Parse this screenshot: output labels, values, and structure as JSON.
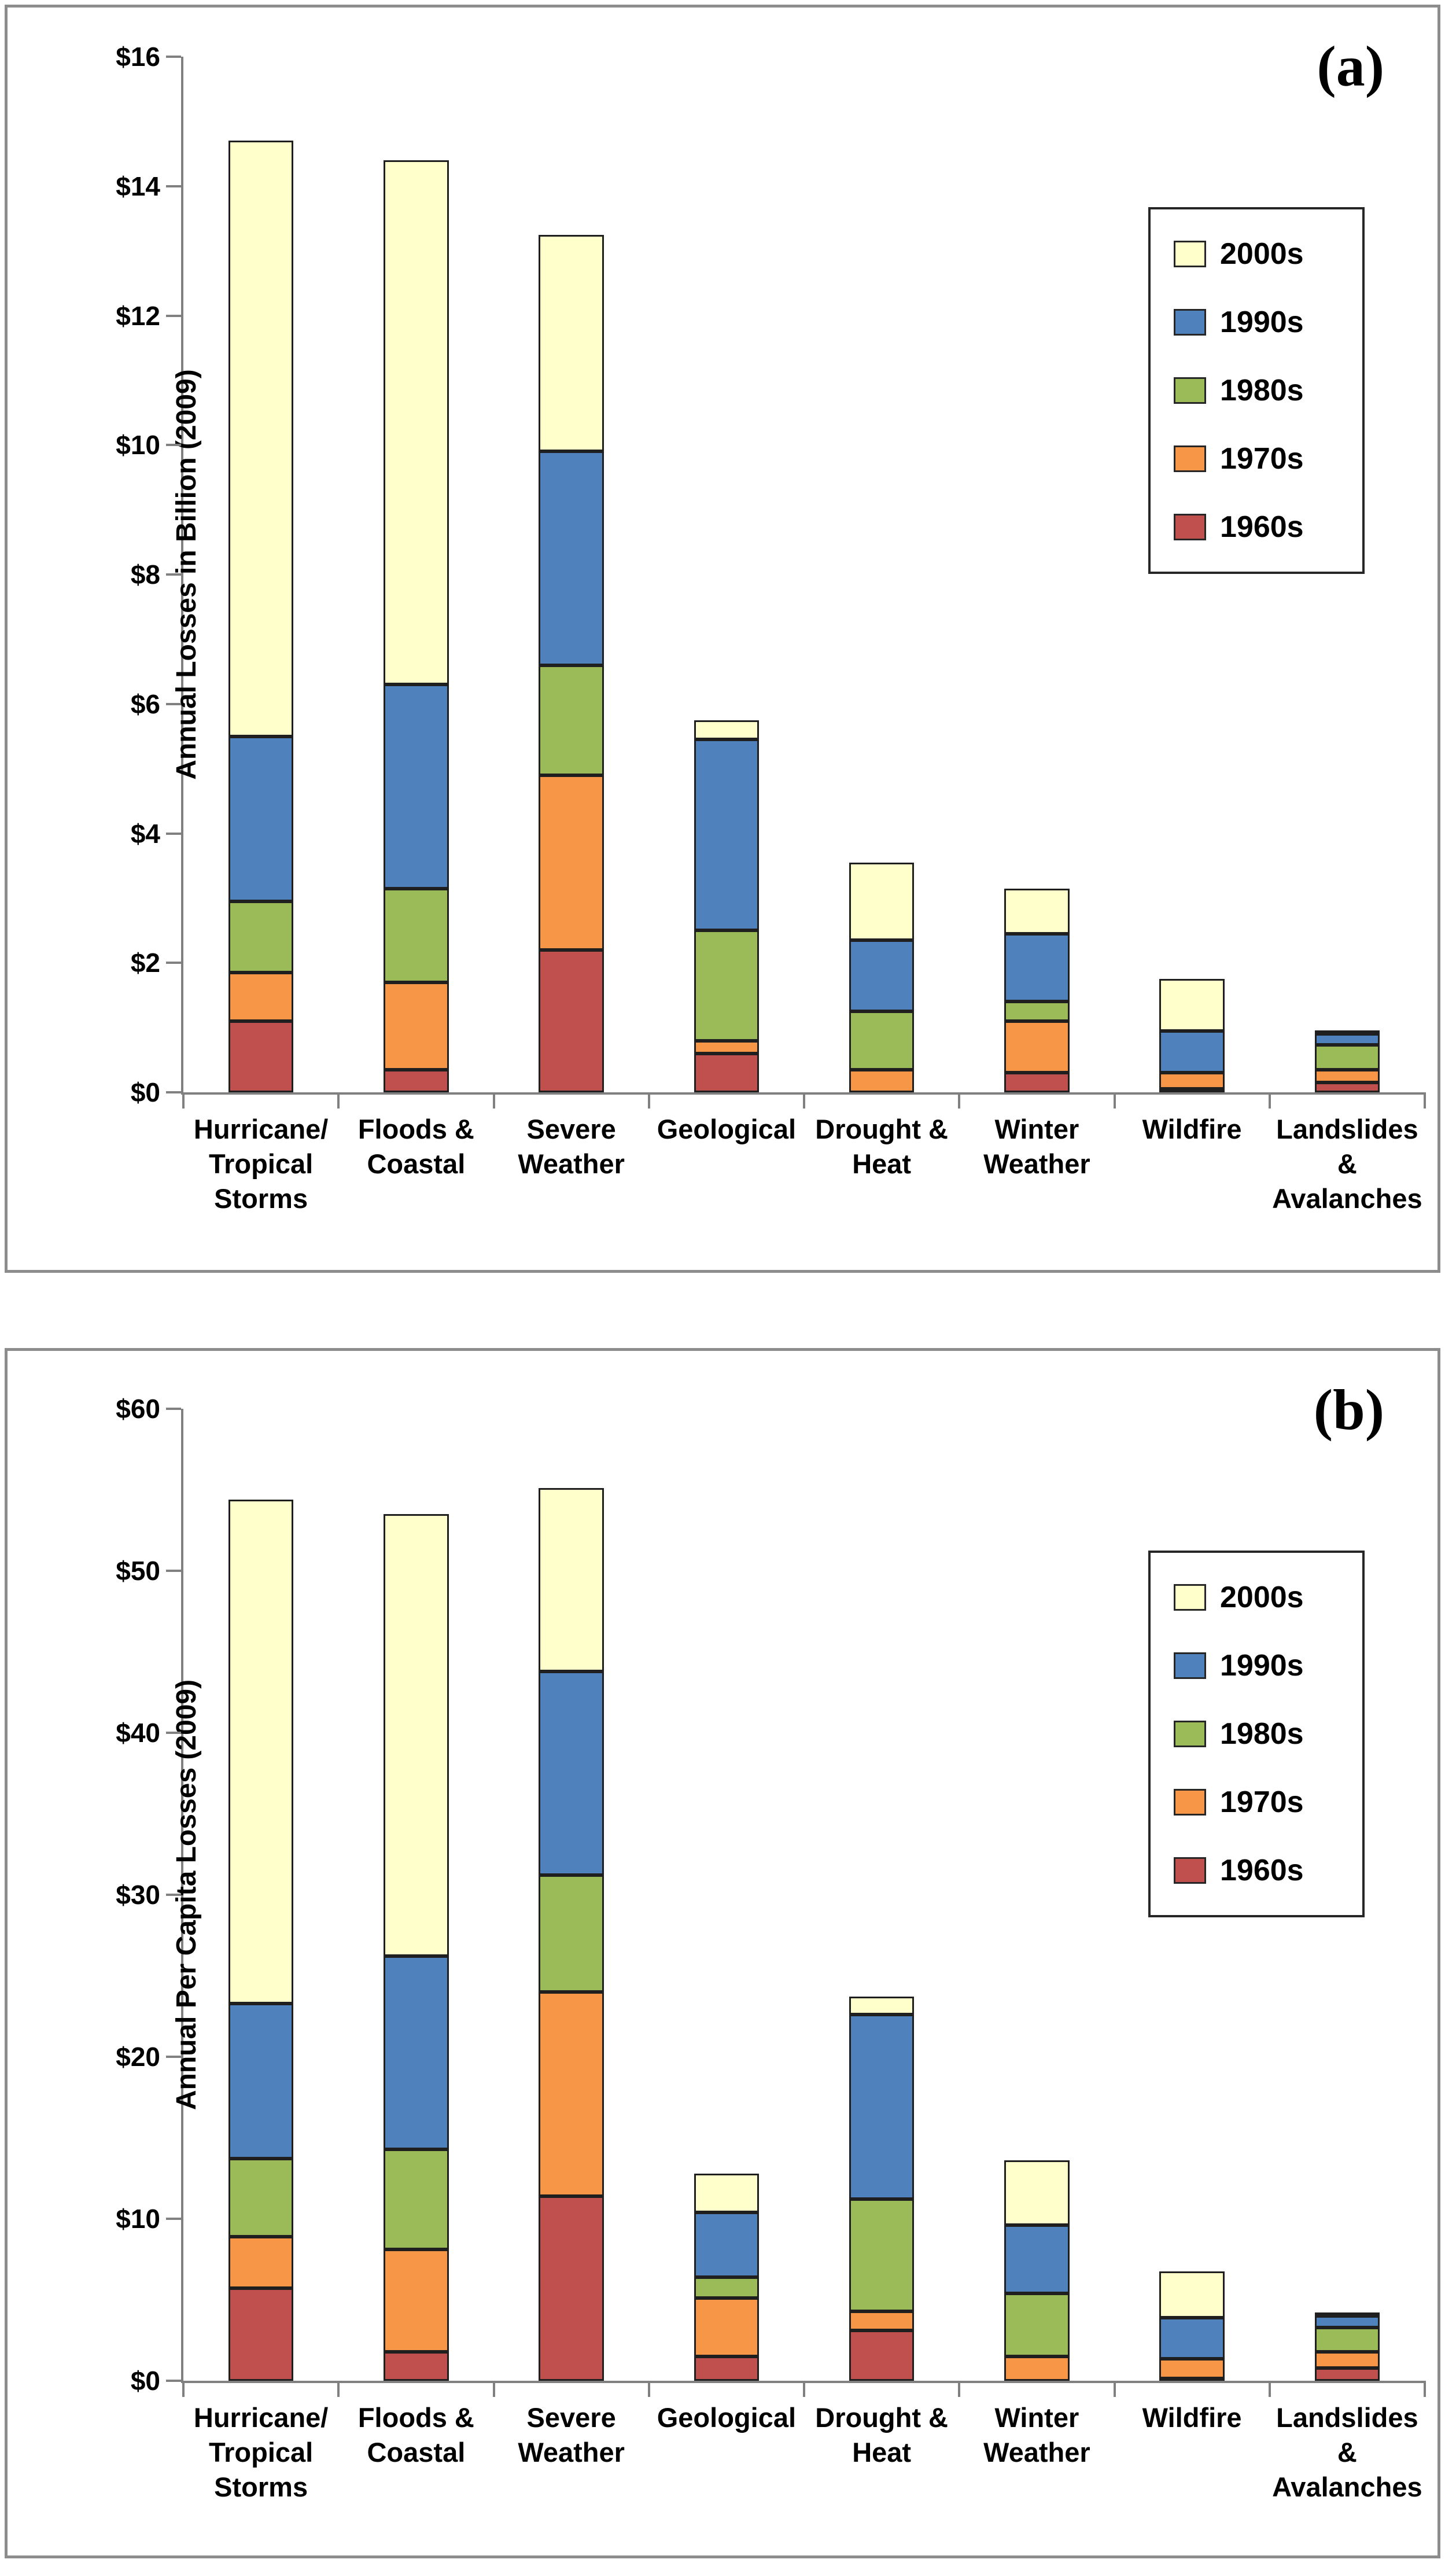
{
  "ui": {
    "background_color": "#FFFFFF",
    "panel_border_color": "#8C8C8C",
    "axis_color": "#808080",
    "segment_border_color": "#1F1F1F",
    "text_color": "#000000"
  },
  "chart_data": [
    {
      "id": "a",
      "type": "bar",
      "stacked": true,
      "panel_label": "(a)",
      "ylabel": "Annual Losses in Billion (2009)",
      "xlabel": "",
      "grid": false,
      "legend_position": "upper-right",
      "y_axis": {
        "min": 0,
        "max": 16,
        "step": 2,
        "tick_labels": [
          "$0",
          "$2",
          "$4",
          "$6",
          "$8",
          "$10",
          "$12",
          "$14",
          "$16"
        ]
      },
      "categories": [
        [
          "Hurricane/",
          "Tropical",
          "Storms"
        ],
        [
          "Floods &",
          "Coastal"
        ],
        [
          "Severe",
          "Weather"
        ],
        [
          "Geological"
        ],
        [
          "Drought &",
          "Heat"
        ],
        [
          "Winter",
          "Weather"
        ],
        [
          "Wildfire"
        ],
        [
          "Landslides",
          "&",
          "Avalanches"
        ]
      ],
      "series": [
        {
          "name": "1960s",
          "color": "#C0504D",
          "values": [
            1.1,
            0.35,
            2.2,
            0.6,
            0.0,
            0.3,
            0.05,
            0.15
          ]
        },
        {
          "name": "1970s",
          "color": "#F79646",
          "values": [
            0.75,
            1.35,
            2.7,
            0.2,
            0.35,
            0.8,
            0.25,
            0.2
          ]
        },
        {
          "name": "1980s",
          "color": "#9BBB59",
          "values": [
            1.1,
            1.45,
            1.7,
            1.7,
            0.9,
            0.3,
            0.0,
            0.38
          ]
        },
        {
          "name": "1990s",
          "color": "#4F81BD",
          "values": [
            2.55,
            3.15,
            3.3,
            2.95,
            1.1,
            1.05,
            0.65,
            0.17
          ]
        },
        {
          "name": "2000s",
          "color": "#FFFFCC",
          "values": [
            9.2,
            8.1,
            3.35,
            0.3,
            1.2,
            0.7,
            0.8,
            0.03
          ]
        }
      ],
      "bar_totals": [
        14.7,
        14.4,
        13.25,
        5.75,
        3.55,
        3.15,
        1.75,
        0.93
      ],
      "legend_order_top_to_bottom": [
        "2000s",
        "1990s",
        "1980s",
        "1970s",
        "1960s"
      ]
    },
    {
      "id": "b",
      "type": "bar",
      "stacked": true,
      "panel_label": "(b)",
      "ylabel": "Annual Per Capita Losses (2009)",
      "xlabel": "",
      "grid": false,
      "legend_position": "upper-right",
      "y_axis": {
        "min": 0,
        "max": 60,
        "step": 10,
        "tick_labels": [
          "$0",
          "$10",
          "$20",
          "$30",
          "$40",
          "$50",
          "$60"
        ]
      },
      "categories": [
        [
          "Hurricane/",
          "Tropical",
          "Storms"
        ],
        [
          "Floods &",
          "Coastal"
        ],
        [
          "Severe",
          "Weather"
        ],
        [
          "Geological"
        ],
        [
          "Drought &",
          "Heat"
        ],
        [
          "Winter",
          "Weather"
        ],
        [
          "Wildfire"
        ],
        [
          "Landslides",
          "&",
          "Avalanches"
        ]
      ],
      "series": [
        {
          "name": "1960s",
          "color": "#C0504D",
          "values": [
            5.7,
            1.8,
            11.4,
            1.5,
            3.1,
            0.0,
            0.15,
            0.8
          ]
        },
        {
          "name": "1970s",
          "color": "#F79646",
          "values": [
            3.2,
            6.3,
            12.6,
            3.6,
            1.2,
            1.5,
            1.2,
            1.0
          ]
        },
        {
          "name": "1980s",
          "color": "#9BBB59",
          "values": [
            4.8,
            6.2,
            7.2,
            1.3,
            6.9,
            3.9,
            0.0,
            1.5
          ]
        },
        {
          "name": "1990s",
          "color": "#4F81BD",
          "values": [
            9.6,
            11.9,
            12.6,
            4.0,
            11.4,
            4.2,
            2.55,
            0.7
          ]
        },
        {
          "name": "2000s",
          "color": "#FFFFCC",
          "values": [
            31.1,
            27.3,
            11.3,
            2.4,
            1.1,
            4.0,
            2.85,
            0.1
          ]
        }
      ],
      "bar_totals": [
        54.4,
        53.5,
        55.1,
        12.8,
        23.7,
        13.6,
        6.75,
        4.1
      ],
      "legend_order_top_to_bottom": [
        "2000s",
        "1990s",
        "1980s",
        "1970s",
        "1960s"
      ]
    }
  ]
}
